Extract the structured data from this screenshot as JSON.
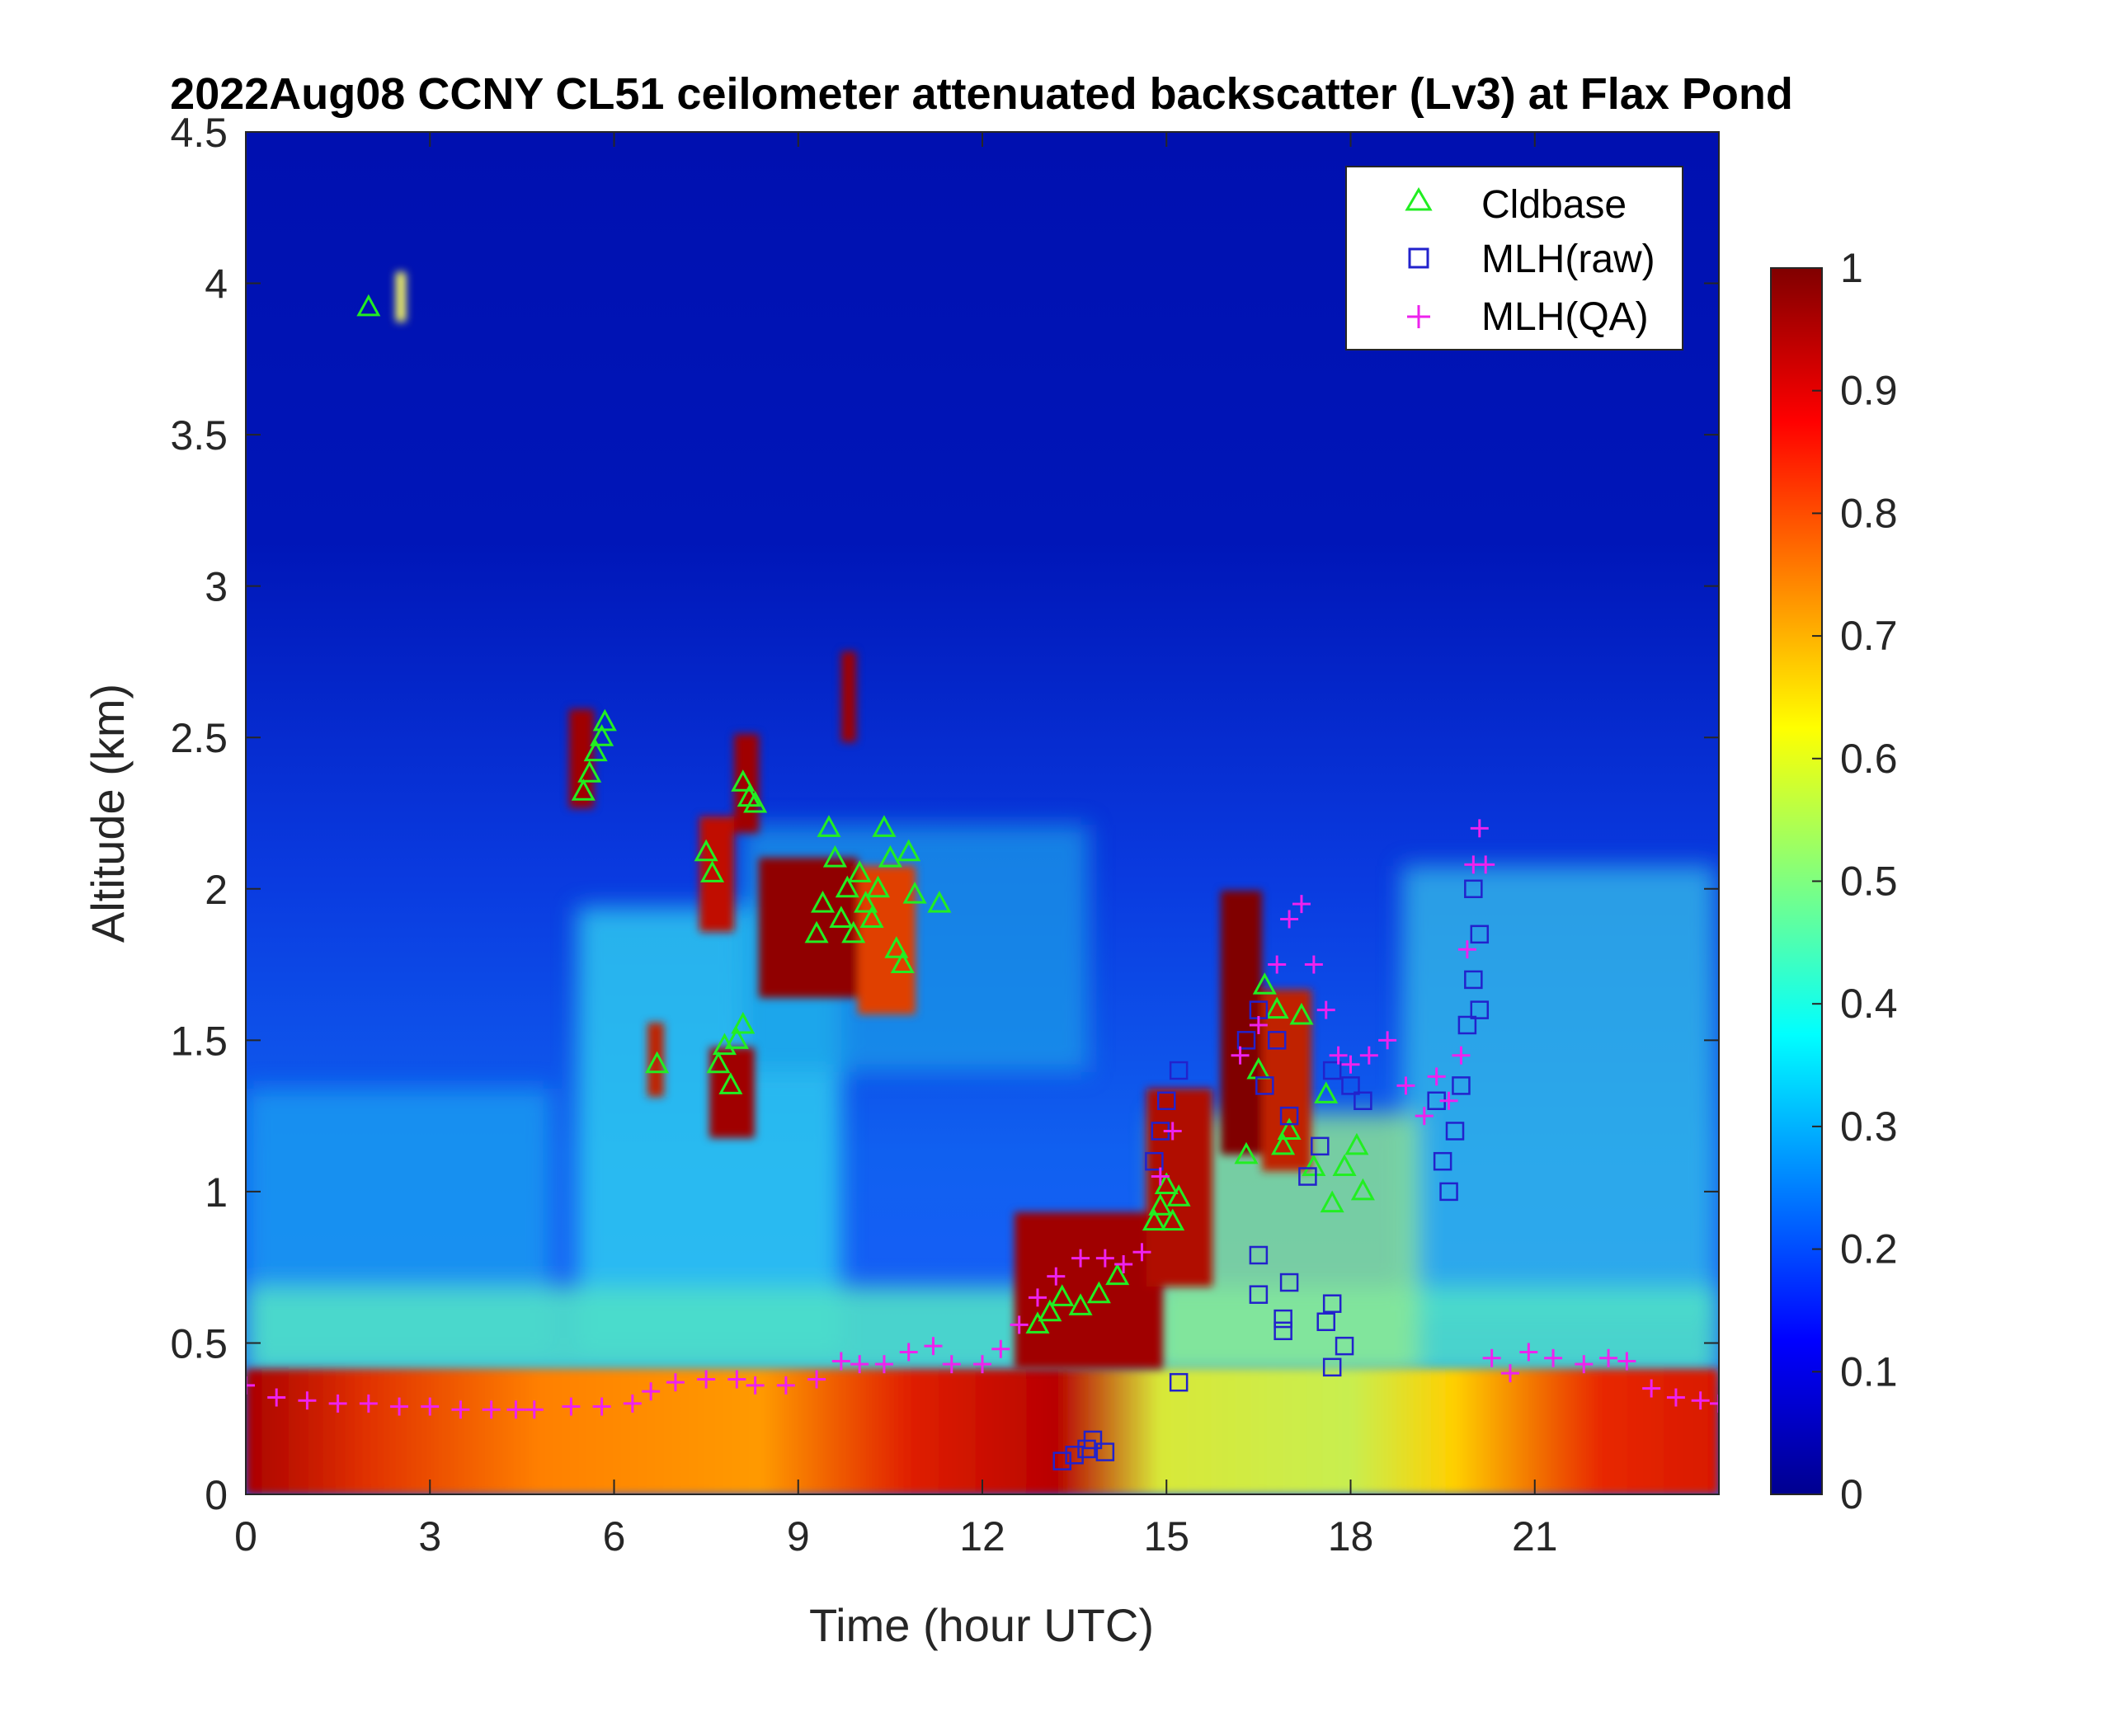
{
  "chart_data": {
    "type": "heatmap",
    "title": "2022Aug08 CCNY CL51 ceilometer attenuated backscatter (Lv3) at Flax Pond",
    "xlabel": "Time (hour UTC)",
    "ylabel": "Altitude (km)",
    "xlim": [
      0,
      24
    ],
    "ylim": [
      0,
      4.5
    ],
    "x_ticks": [
      "0",
      "3",
      "6",
      "9",
      "12",
      "15",
      "18",
      "21"
    ],
    "y_ticks": [
      "0",
      "0.5",
      "1",
      "1.5",
      "2",
      "2.5",
      "3",
      "3.5",
      "4",
      "4.5"
    ],
    "colorbar": {
      "range": [
        0,
        1
      ],
      "ticks": [
        "0",
        "0.1",
        "0.2",
        "0.3",
        "0.4",
        "0.5",
        "0.6",
        "0.7",
        "0.8",
        "0.9",
        "1"
      ],
      "colormap": "jet"
    },
    "legend": {
      "position": "top-right",
      "entries": [
        {
          "name": "Cldbase",
          "marker": "triangle",
          "color": "#22ee22"
        },
        {
          "name": "MLH(raw)",
          "marker": "square",
          "color": "#2222cc"
        },
        {
          "name": "MLH(QA)",
          "marker": "plus",
          "color": "#ee22ee"
        }
      ]
    },
    "series": [
      {
        "name": "Cldbase",
        "points": [
          [
            2.0,
            3.92
          ],
          [
            5.5,
            2.32
          ],
          [
            5.6,
            2.38
          ],
          [
            5.7,
            2.45
          ],
          [
            5.8,
            2.5
          ],
          [
            5.85,
            2.55
          ],
          [
            6.7,
            1.42
          ],
          [
            7.5,
            2.12
          ],
          [
            7.6,
            2.05
          ],
          [
            7.7,
            1.42
          ],
          [
            7.8,
            1.48
          ],
          [
            7.9,
            1.35
          ],
          [
            8.0,
            1.5
          ],
          [
            8.1,
            1.55
          ],
          [
            8.1,
            2.35
          ],
          [
            8.2,
            2.3
          ],
          [
            8.3,
            2.28
          ],
          [
            9.3,
            1.85
          ],
          [
            9.4,
            1.95
          ],
          [
            9.5,
            2.2
          ],
          [
            9.6,
            2.1
          ],
          [
            9.7,
            1.9
          ],
          [
            9.8,
            2.0
          ],
          [
            9.9,
            1.85
          ],
          [
            10.0,
            2.05
          ],
          [
            10.1,
            1.95
          ],
          [
            10.2,
            1.9
          ],
          [
            10.3,
            2.0
          ],
          [
            10.4,
            2.2
          ],
          [
            10.5,
            2.1
          ],
          [
            10.6,
            1.8
          ],
          [
            10.7,
            1.75
          ],
          [
            10.8,
            2.12
          ],
          [
            10.9,
            1.98
          ],
          [
            11.3,
            1.95
          ],
          [
            12.9,
            0.56
          ],
          [
            13.1,
            0.6
          ],
          [
            13.3,
            0.65
          ],
          [
            13.6,
            0.62
          ],
          [
            13.9,
            0.66
          ],
          [
            14.2,
            0.72
          ],
          [
            14.8,
            0.9
          ],
          [
            14.9,
            0.95
          ],
          [
            15.0,
            1.02
          ],
          [
            15.1,
            0.9
          ],
          [
            15.2,
            0.98
          ],
          [
            16.3,
            1.12
          ],
          [
            16.5,
            1.4
          ],
          [
            16.6,
            1.68
          ],
          [
            16.8,
            1.6
          ],
          [
            16.9,
            1.15
          ],
          [
            17.0,
            1.2
          ],
          [
            17.2,
            1.58
          ],
          [
            17.4,
            1.08
          ],
          [
            17.6,
            1.32
          ],
          [
            17.7,
            0.96
          ],
          [
            17.9,
            1.08
          ],
          [
            18.1,
            1.15
          ],
          [
            18.2,
            1.0
          ]
        ]
      },
      {
        "name": "MLH(raw)",
        "points": [
          [
            13.3,
            0.11
          ],
          [
            13.5,
            0.13
          ],
          [
            13.7,
            0.15
          ],
          [
            13.8,
            0.18
          ],
          [
            14.0,
            0.14
          ],
          [
            15.2,
            0.37
          ],
          [
            14.8,
            1.1
          ],
          [
            14.9,
            1.2
          ],
          [
            15.0,
            1.3
          ],
          [
            15.2,
            1.4
          ],
          [
            16.5,
            0.79
          ],
          [
            16.5,
            0.66
          ],
          [
            16.9,
            0.58
          ],
          [
            16.9,
            0.54
          ],
          [
            17.0,
            0.7
          ],
          [
            17.6,
            0.57
          ],
          [
            17.7,
            0.63
          ],
          [
            17.7,
            0.42
          ],
          [
            17.9,
            0.49
          ],
          [
            16.3,
            1.5
          ],
          [
            16.5,
            1.6
          ],
          [
            16.6,
            1.35
          ],
          [
            16.8,
            1.5
          ],
          [
            17.0,
            1.25
          ],
          [
            17.3,
            1.05
          ],
          [
            17.5,
            1.15
          ],
          [
            17.7,
            1.4
          ],
          [
            18.0,
            1.35
          ],
          [
            18.2,
            1.3
          ],
          [
            19.4,
            1.3
          ],
          [
            19.5,
            1.1
          ],
          [
            19.6,
            1.0
          ],
          [
            19.7,
            1.2
          ],
          [
            19.8,
            1.35
          ],
          [
            19.9,
            1.55
          ],
          [
            20.0,
            1.7
          ],
          [
            20.1,
            1.85
          ],
          [
            20.0,
            2.0
          ],
          [
            20.1,
            1.6
          ]
        ]
      },
      {
        "name": "MLH(QA)",
        "points": [
          [
            0.0,
            0.36
          ],
          [
            0.5,
            0.32
          ],
          [
            1.0,
            0.31
          ],
          [
            1.5,
            0.3
          ],
          [
            2.0,
            0.3
          ],
          [
            2.5,
            0.29
          ],
          [
            3.0,
            0.29
          ],
          [
            3.5,
            0.28
          ],
          [
            4.0,
            0.28
          ],
          [
            4.4,
            0.28
          ],
          [
            4.7,
            0.28
          ],
          [
            5.3,
            0.29
          ],
          [
            5.8,
            0.29
          ],
          [
            6.3,
            0.3
          ],
          [
            6.6,
            0.34
          ],
          [
            7.0,
            0.37
          ],
          [
            7.5,
            0.38
          ],
          [
            8.0,
            0.38
          ],
          [
            8.3,
            0.36
          ],
          [
            8.8,
            0.36
          ],
          [
            9.3,
            0.38
          ],
          [
            9.7,
            0.44
          ],
          [
            10.0,
            0.43
          ],
          [
            10.4,
            0.43
          ],
          [
            10.8,
            0.47
          ],
          [
            11.2,
            0.49
          ],
          [
            11.5,
            0.43
          ],
          [
            12.0,
            0.43
          ],
          [
            12.3,
            0.48
          ],
          [
            12.6,
            0.56
          ],
          [
            12.9,
            0.65
          ],
          [
            13.2,
            0.72
          ],
          [
            13.6,
            0.78
          ],
          [
            14.0,
            0.78
          ],
          [
            14.3,
            0.76
          ],
          [
            14.6,
            0.8
          ],
          [
            14.9,
            1.05
          ],
          [
            15.1,
            1.2
          ],
          [
            16.2,
            1.45
          ],
          [
            16.5,
            1.55
          ],
          [
            16.8,
            1.75
          ],
          [
            17.0,
            1.9
          ],
          [
            17.2,
            1.95
          ],
          [
            17.4,
            1.75
          ],
          [
            17.6,
            1.6
          ],
          [
            17.8,
            1.45
          ],
          [
            18.0,
            1.42
          ],
          [
            18.3,
            1.45
          ],
          [
            18.6,
            1.5
          ],
          [
            18.9,
            1.35
          ],
          [
            19.2,
            1.25
          ],
          [
            19.4,
            1.38
          ],
          [
            19.6,
            1.3
          ],
          [
            19.8,
            1.45
          ],
          [
            19.9,
            1.8
          ],
          [
            20.0,
            2.08
          ],
          [
            20.1,
            2.2
          ],
          [
            20.2,
            2.08
          ],
          [
            20.3,
            0.45
          ],
          [
            20.6,
            0.4
          ],
          [
            20.9,
            0.47
          ],
          [
            21.3,
            0.45
          ],
          [
            21.8,
            0.43
          ],
          [
            22.2,
            0.45
          ],
          [
            22.5,
            0.44
          ],
          [
            22.9,
            0.35
          ],
          [
            23.3,
            0.32
          ],
          [
            23.7,
            0.31
          ],
          [
            24.0,
            0.3
          ]
        ]
      }
    ]
  }
}
